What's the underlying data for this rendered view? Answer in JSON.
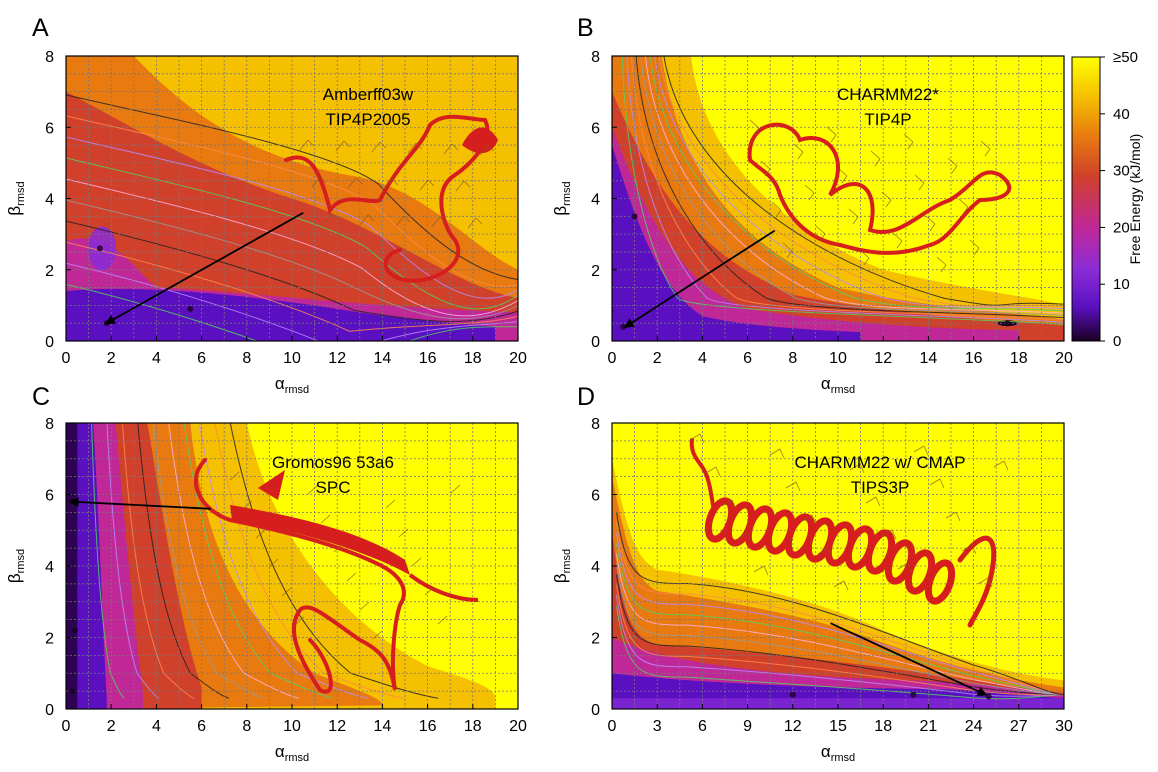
{
  "colors": {
    "low": "#1a0022",
    "violet": "#5a10c0",
    "purple": "#8a2cd8",
    "magenta": "#c02898",
    "red": "#d0402a",
    "orange": "#e87a10",
    "gold": "#f5c000",
    "yellow": "#ffff00",
    "grid": "#777777",
    "protein": "#d61e1e"
  },
  "colorbar": {
    "label": "Free Energy (kJ/mol)",
    "ticks": [
      "≥50",
      "40",
      "30",
      "20",
      "10",
      "0"
    ],
    "range": [
      0,
      50
    ]
  },
  "chart_data": [
    {
      "panel": "A",
      "type": "heatmap",
      "annotation": [
        "Amberff03w",
        "TIP4P2005"
      ],
      "xlabel": "α",
      "xlabel_sub": "rmsd",
      "ylabel": "β",
      "ylabel_sub": "rmsd",
      "xlim": [
        0,
        20
      ],
      "ylim": [
        0,
        8
      ],
      "xticks": [
        0,
        2,
        4,
        6,
        8,
        10,
        12,
        14,
        16,
        18,
        20
      ],
      "yticks": [
        0,
        2,
        4,
        6,
        8
      ],
      "grid": true,
      "minima": [
        [
          1.8,
          0.5
        ],
        [
          5.5,
          0.9
        ],
        [
          1.5,
          2.6
        ]
      ],
      "arrow": {
        "from": [
          10.5,
          3.6
        ],
        "to": [
          1.8,
          0.5
        ]
      },
      "structure": "coil"
    },
    {
      "panel": "B",
      "type": "heatmap",
      "annotation": [
        "CHARMM22*",
        "TIP4P"
      ],
      "xlabel": "α",
      "xlabel_sub": "rmsd",
      "ylabel": "β",
      "ylabel_sub": "rmsd",
      "xlim": [
        0,
        20
      ],
      "ylim": [
        0,
        8
      ],
      "xticks": [
        0,
        2,
        4,
        6,
        8,
        10,
        12,
        14,
        16,
        18,
        20
      ],
      "yticks": [
        0,
        2,
        4,
        6,
        8
      ],
      "grid": true,
      "minima": [
        [
          0.5,
          0.4
        ],
        [
          1.0,
          3.5
        ],
        [
          17.5,
          0.5
        ]
      ],
      "arrow": {
        "from": [
          7.2,
          3.1
        ],
        "to": [
          0.6,
          0.4
        ]
      },
      "structure": "coil"
    },
    {
      "panel": "C",
      "type": "heatmap",
      "annotation": [
        "Gromos96 53a6",
        "SPC"
      ],
      "xlabel": "α",
      "xlabel_sub": "rmsd",
      "ylabel": "β",
      "ylabel_sub": "rmsd",
      "xlim": [
        0,
        20
      ],
      "ylim": [
        0,
        8
      ],
      "xticks": [
        0,
        2,
        4,
        6,
        8,
        10,
        12,
        14,
        16,
        18,
        20
      ],
      "yticks": [
        0,
        2,
        4,
        6,
        8
      ],
      "grid": true,
      "minima": [
        [
          0.3,
          5.8
        ],
        [
          0.4,
          2.2
        ],
        [
          0.3,
          0.5
        ]
      ],
      "arrow": {
        "from": [
          6.4,
          5.6
        ],
        "to": [
          0.2,
          5.8
        ]
      },
      "structure": "hairpin"
    },
    {
      "panel": "D",
      "type": "heatmap",
      "annotation": [
        "CHARMM22 w/ CMAP",
        "TIPS3P"
      ],
      "xlabel": "α",
      "xlabel_sub": "rmsd",
      "ylabel": "β",
      "ylabel_sub": "rmsd",
      "xlim": [
        0,
        30
      ],
      "ylim": [
        0,
        8
      ],
      "xticks": [
        0,
        3,
        6,
        9,
        12,
        15,
        18,
        21,
        24,
        27,
        30
      ],
      "yticks": [
        0,
        2,
        4,
        6,
        8
      ],
      "grid": true,
      "minima": [
        [
          25,
          0.35
        ],
        [
          12,
          0.4
        ],
        [
          20,
          0.4
        ]
      ],
      "arrow": {
        "from": [
          14.5,
          2.4
        ],
        "to": [
          24.8,
          0.4
        ]
      },
      "structure": "helix"
    }
  ]
}
